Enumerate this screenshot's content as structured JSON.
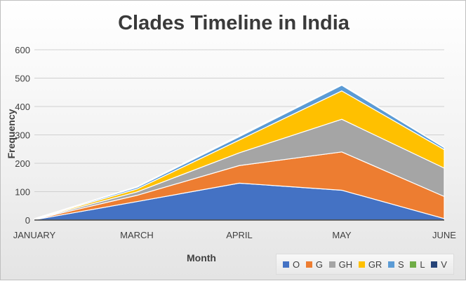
{
  "chart_data": {
    "type": "area",
    "stacked": true,
    "title": "Clades Timeline in India",
    "xlabel": "Month",
    "ylabel": "Frequency",
    "categories": [
      "JANUARY",
      "MARCH",
      "APRIL",
      "MAY",
      "JUNE"
    ],
    "ylim": [
      0,
      600
    ],
    "yticks": [
      0,
      100,
      200,
      300,
      400,
      500,
      600
    ],
    "grid": true,
    "legend_position": "bottom-right",
    "series": [
      {
        "name": "O",
        "color": "#4472c4",
        "values": [
          1,
          65,
          130,
          105,
          5
        ]
      },
      {
        "name": "G",
        "color": "#ed7d31",
        "values": [
          1,
          22,
          62,
          135,
          78
        ]
      },
      {
        "name": "GH",
        "color": "#a5a5a5",
        "values": [
          1,
          12,
          45,
          115,
          100
        ]
      },
      {
        "name": "GR",
        "color": "#ffc000",
        "values": [
          1,
          10,
          45,
          100,
          65
        ]
      },
      {
        "name": "S",
        "color": "#5b9bd5",
        "values": [
          1,
          6,
          12,
          20,
          7
        ]
      },
      {
        "name": "L",
        "color": "#70ad47",
        "values": [
          0,
          2,
          3,
          2,
          1
        ]
      },
      {
        "name": "V",
        "color": "#264478",
        "values": [
          0,
          1,
          2,
          1,
          0
        ]
      }
    ]
  }
}
